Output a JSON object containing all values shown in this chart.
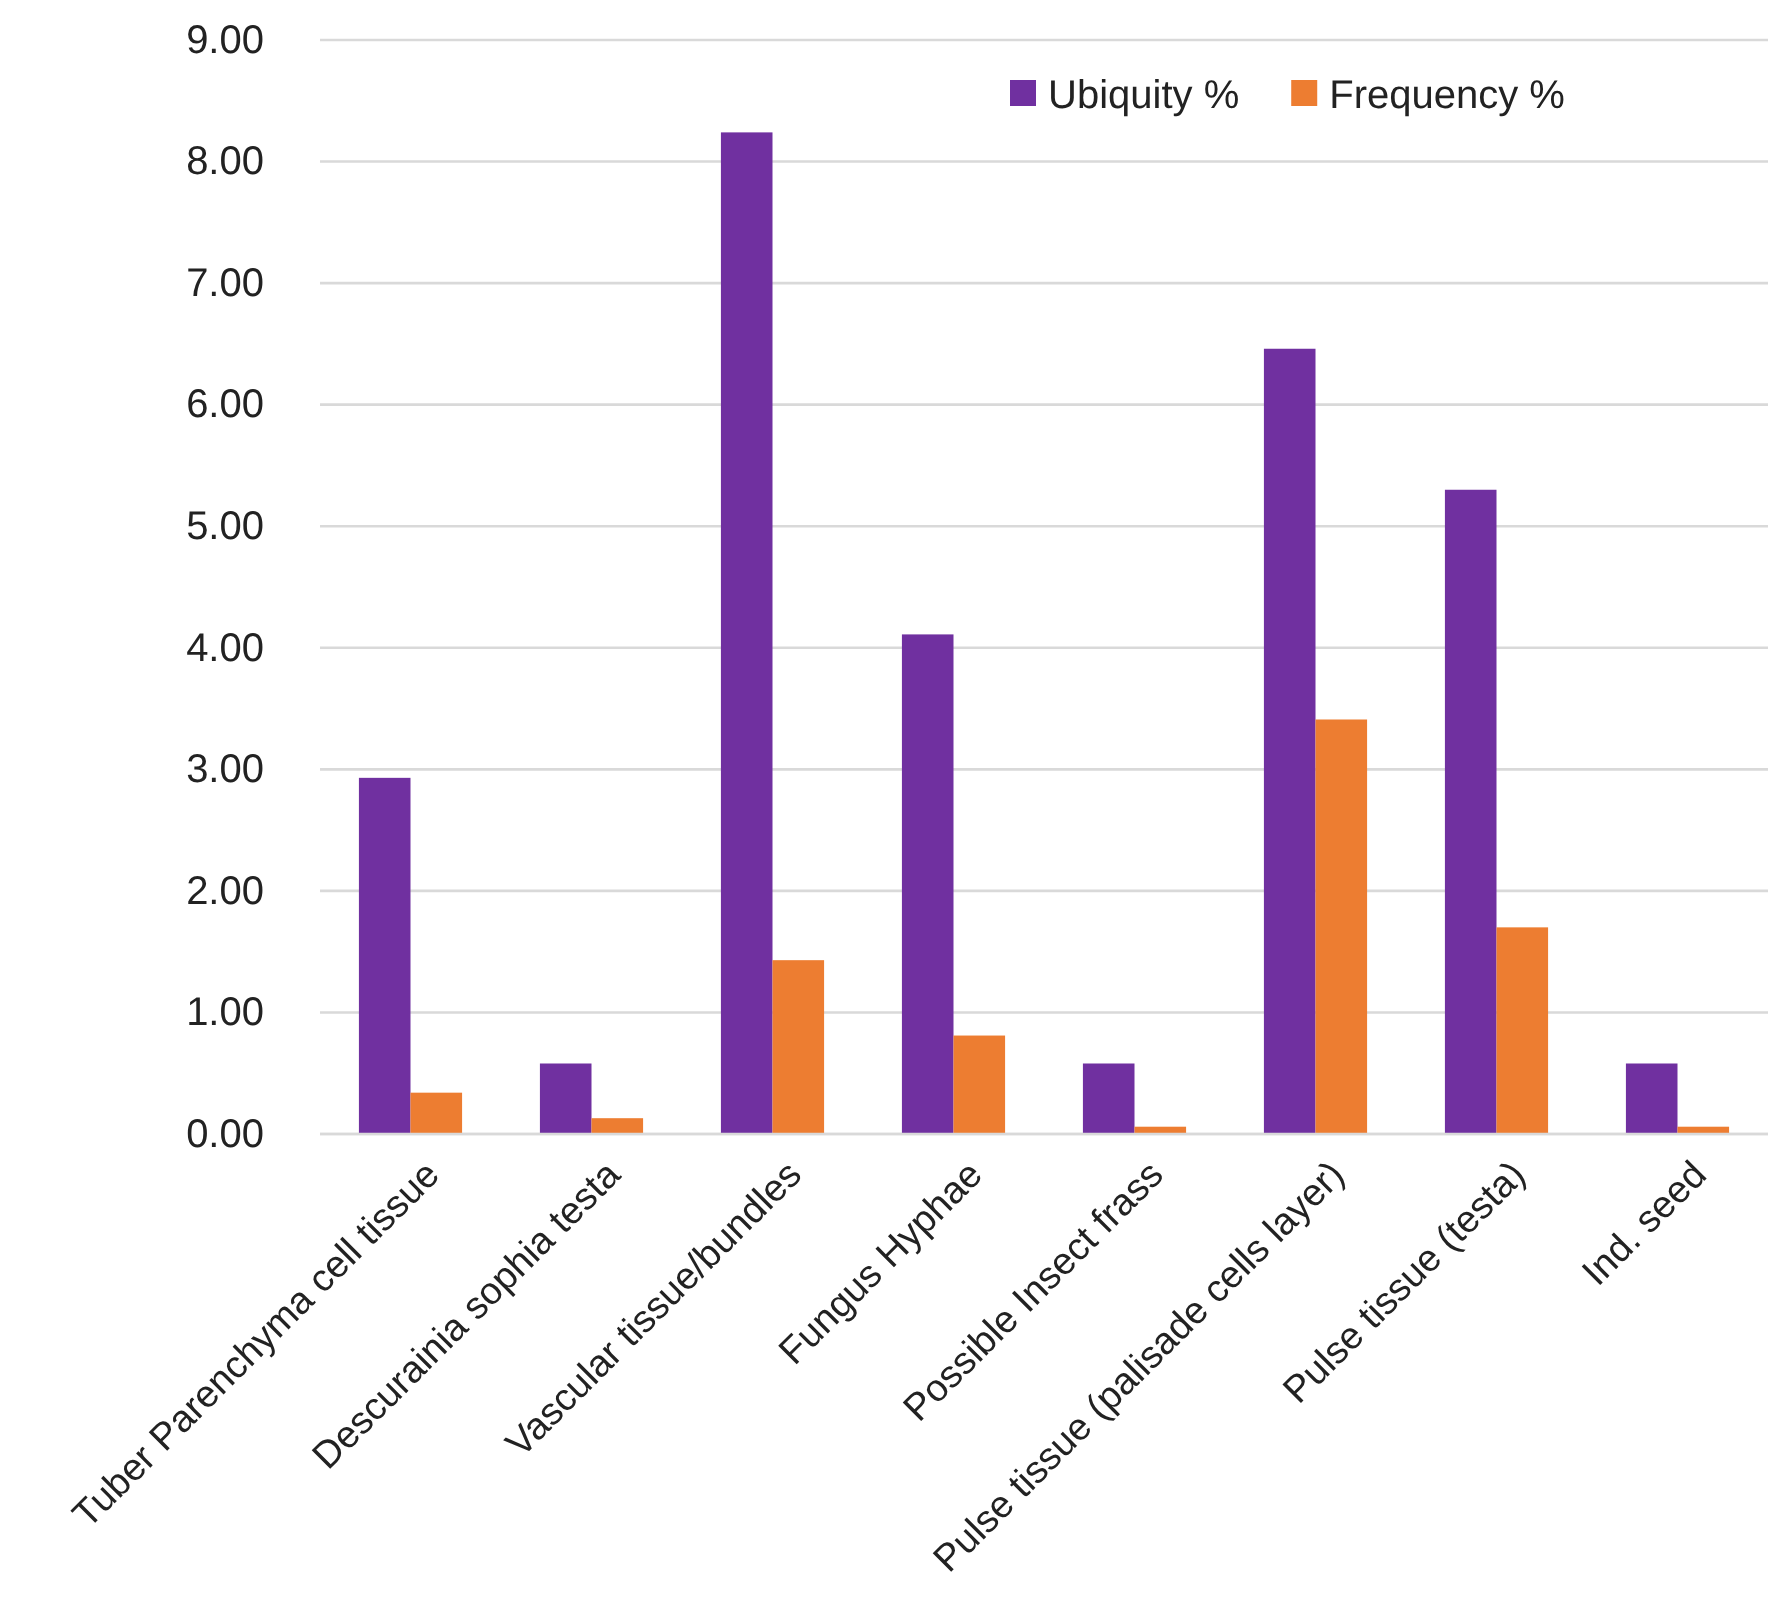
{
  "chart_data": {
    "type": "bar",
    "categories": [
      "Tuber Parenchyma cell tissue",
      "Descurainia sophia testa",
      "Vascular tissue/bundles",
      "Fungus Hyphae",
      "Possible Insect frass",
      "Pulse tissue (palisade cells layer)",
      "Pulse tissue (testa)",
      "Ind. seed"
    ],
    "series": [
      {
        "name": "Ubiquity %",
        "color": "#7030a0",
        "values": [
          2.93,
          0.58,
          8.24,
          4.11,
          0.58,
          6.46,
          5.3,
          0.58
        ]
      },
      {
        "name": "Frequency %",
        "color": "#ed7d31",
        "values": [
          0.34,
          0.13,
          1.43,
          0.81,
          0.06,
          3.41,
          1.7,
          0.06
        ]
      }
    ],
    "ylim": [
      0,
      9
    ],
    "yticks": [
      {
        "value": 0,
        "label": "0.00"
      },
      {
        "value": 1,
        "label": "1.00"
      },
      {
        "value": 2,
        "label": "2.00"
      },
      {
        "value": 3,
        "label": "3.00"
      },
      {
        "value": 4,
        "label": "4.00"
      },
      {
        "value": 5,
        "label": "5.00"
      },
      {
        "value": 6,
        "label": "6.00"
      },
      {
        "value": 7,
        "label": "7.00"
      },
      {
        "value": 8,
        "label": "8.00"
      },
      {
        "value": 9,
        "label": "9.00"
      }
    ],
    "grid": "y",
    "legend": "top right"
  }
}
